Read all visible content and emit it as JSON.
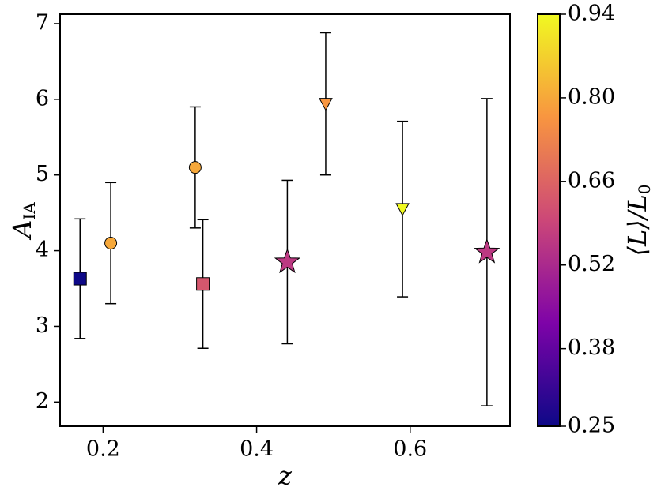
{
  "chart_data": {
    "type": "scatter",
    "xlabel": "z",
    "ylabel": "A",
    "ylabel_sub": "IA",
    "colorbar_label": "⟨L⟩/L",
    "colorbar_label_sub": "0",
    "x": [
      0.17,
      0.21,
      0.32,
      0.33,
      0.44,
      0.49,
      0.59,
      0.7
    ],
    "y": [
      3.63,
      4.1,
      5.1,
      3.56,
      3.85,
      5.94,
      4.55,
      3.98
    ],
    "yerr": [
      0.79,
      0.8,
      0.8,
      0.85,
      1.08,
      0.94,
      1.16,
      2.03
    ],
    "c": [
      0.25,
      0.8,
      0.8,
      0.63,
      0.56,
      0.77,
      0.94,
      0.56
    ],
    "markers": [
      "square",
      "circle",
      "circle",
      "square",
      "star",
      "triangle-down",
      "triangle-down",
      "star"
    ],
    "colormap": "plasma",
    "xlim": [
      0.144,
      0.73
    ],
    "ylim": [
      1.68,
      7.125
    ],
    "xticks": [
      0.2,
      0.4,
      0.6
    ],
    "yticks": [
      2,
      3,
      4,
      5,
      6,
      7
    ],
    "clim": [
      0.25,
      0.94
    ],
    "cticks": [
      0.25,
      0.38,
      0.52,
      0.66,
      {
        "value": 0.8,
        "label": "0.80"
      },
      0.94
    ]
  }
}
